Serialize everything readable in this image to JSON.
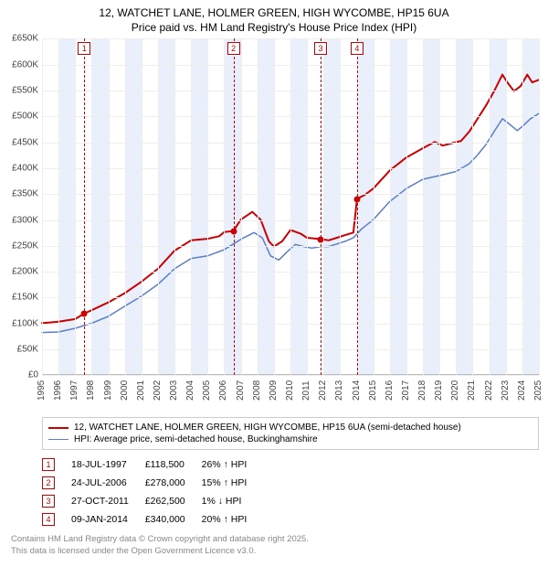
{
  "title_line1": "12, WATCHET LANE, HOLMER GREEN, HIGH WYCOMBE, HP15 6UA",
  "title_line2": "Price paid vs. HM Land Registry's House Price Index (HPI)",
  "chart": {
    "type": "line",
    "background_color": "#ffffff",
    "grid_color": "#eeeeee",
    "band_color": "#e9f0fb",
    "x_years": [
      1995,
      1996,
      1997,
      1998,
      1999,
      2000,
      2001,
      2002,
      2003,
      2004,
      2005,
      2006,
      2007,
      2008,
      2009,
      2010,
      2011,
      2012,
      2013,
      2014,
      2015,
      2016,
      2017,
      2018,
      2019,
      2020,
      2021,
      2022,
      2023,
      2024,
      2025
    ],
    "y_min": 0,
    "y_max": 650000,
    "y_step": 50000,
    "y_labels": [
      "£0",
      "£50K",
      "£100K",
      "£150K",
      "£200K",
      "£250K",
      "£300K",
      "£350K",
      "£400K",
      "£450K",
      "£500K",
      "£550K",
      "£600K",
      "£650K"
    ],
    "series_price": {
      "color": "#cc0000",
      "width": 2,
      "points": [
        [
          1995.0,
          100000
        ],
        [
          1996.0,
          103000
        ],
        [
          1997.0,
          108000
        ],
        [
          1997.55,
          118500
        ],
        [
          1998.0,
          125000
        ],
        [
          1999.0,
          140000
        ],
        [
          2000.0,
          158000
        ],
        [
          2001.0,
          180000
        ],
        [
          2002.0,
          205000
        ],
        [
          2003.0,
          240000
        ],
        [
          2004.0,
          260000
        ],
        [
          2005.0,
          263000
        ],
        [
          2005.7,
          268000
        ],
        [
          2006.0,
          276000
        ],
        [
          2006.56,
          278000
        ],
        [
          2007.0,
          300000
        ],
        [
          2007.7,
          315000
        ],
        [
          2008.2,
          300000
        ],
        [
          2008.7,
          258000
        ],
        [
          2009.0,
          248000
        ],
        [
          2009.5,
          258000
        ],
        [
          2010.0,
          280000
        ],
        [
          2010.6,
          273000
        ],
        [
          2011.0,
          265000
        ],
        [
          2011.8,
          262500
        ],
        [
          2012.3,
          260000
        ],
        [
          2012.8,
          265000
        ],
        [
          2013.3,
          270000
        ],
        [
          2013.8,
          275000
        ],
        [
          2014.02,
          340000
        ],
        [
          2014.5,
          348000
        ],
        [
          2015.0,
          360000
        ],
        [
          2016.0,
          395000
        ],
        [
          2017.0,
          420000
        ],
        [
          2018.0,
          438000
        ],
        [
          2018.7,
          450000
        ],
        [
          2019.2,
          443000
        ],
        [
          2019.8,
          448000
        ],
        [
          2020.3,
          452000
        ],
        [
          2020.8,
          470000
        ],
        [
          2021.3,
          495000
        ],
        [
          2021.8,
          520000
        ],
        [
          2022.3,
          548000
        ],
        [
          2022.8,
          580000
        ],
        [
          2023.1,
          565000
        ],
        [
          2023.5,
          548000
        ],
        [
          2023.9,
          558000
        ],
        [
          2024.3,
          580000
        ],
        [
          2024.6,
          565000
        ],
        [
          2025.0,
          570000
        ]
      ]
    },
    "series_hpi": {
      "color": "#5b7fc7",
      "width": 1.5,
      "points": [
        [
          1995.0,
          82000
        ],
        [
          1996.0,
          83000
        ],
        [
          1997.0,
          90000
        ],
        [
          1998.0,
          100000
        ],
        [
          1999.0,
          113000
        ],
        [
          2000.0,
          133000
        ],
        [
          2001.0,
          152000
        ],
        [
          2002.0,
          175000
        ],
        [
          2003.0,
          205000
        ],
        [
          2004.0,
          225000
        ],
        [
          2005.0,
          230000
        ],
        [
          2006.0,
          242000
        ],
        [
          2007.0,
          262000
        ],
        [
          2007.8,
          275000
        ],
        [
          2008.3,
          265000
        ],
        [
          2008.8,
          230000
        ],
        [
          2009.3,
          222000
        ],
        [
          2009.8,
          238000
        ],
        [
          2010.3,
          252000
        ],
        [
          2010.8,
          248000
        ],
        [
          2011.3,
          245000
        ],
        [
          2011.8,
          248000
        ],
        [
          2012.3,
          248000
        ],
        [
          2012.8,
          253000
        ],
        [
          2013.3,
          258000
        ],
        [
          2013.8,
          265000
        ],
        [
          2014.3,
          282000
        ],
        [
          2015.0,
          300000
        ],
        [
          2016.0,
          335000
        ],
        [
          2017.0,
          360000
        ],
        [
          2018.0,
          378000
        ],
        [
          2019.0,
          385000
        ],
        [
          2020.0,
          393000
        ],
        [
          2020.8,
          408000
        ],
        [
          2021.3,
          425000
        ],
        [
          2021.8,
          445000
        ],
        [
          2022.3,
          470000
        ],
        [
          2022.8,
          495000
        ],
        [
          2023.2,
          485000
        ],
        [
          2023.7,
          472000
        ],
        [
          2024.0,
          480000
        ],
        [
          2024.5,
          495000
        ],
        [
          2025.0,
          505000
        ]
      ]
    },
    "sale_events": [
      {
        "n": "1",
        "year": 1997.55,
        "price": 118500,
        "color": "#cc0000"
      },
      {
        "n": "2",
        "year": 2006.56,
        "price": 278000,
        "color": "#cc0000"
      },
      {
        "n": "3",
        "year": 2011.82,
        "price": 262500,
        "color": "#cc0000"
      },
      {
        "n": "4",
        "year": 2014.02,
        "price": 340000,
        "color": "#cc0000"
      }
    ]
  },
  "legend": {
    "row1_label": "12, WATCHET LANE, HOLMER GREEN, HIGH WYCOMBE, HP15 6UA (semi-detached house)",
    "row1_color": "#cc0000",
    "row1_width": 2,
    "row2_label": "HPI: Average price, semi-detached house, Buckinghamshire",
    "row2_color": "#5b7fc7",
    "row2_width": 1.5
  },
  "sales_table": {
    "rows": [
      {
        "n": "1",
        "color": "#cc0000",
        "date": "18-JUL-1997",
        "price": "£118,500",
        "pct": "26% ↑ HPI"
      },
      {
        "n": "2",
        "color": "#cc0000",
        "date": "24-JUL-2006",
        "price": "£278,000",
        "pct": "15% ↑ HPI"
      },
      {
        "n": "3",
        "color": "#cc0000",
        "date": "27-OCT-2011",
        "price": "£262,500",
        "pct": "1% ↓ HPI"
      },
      {
        "n": "4",
        "color": "#cc0000",
        "date": "09-JAN-2014",
        "price": "£340,000",
        "pct": "20% ↑ HPI"
      }
    ]
  },
  "footer_line1": "Contains HM Land Registry data © Crown copyright and database right 2025.",
  "footer_line2": "This data is licensed under the Open Government Licence v3.0."
}
